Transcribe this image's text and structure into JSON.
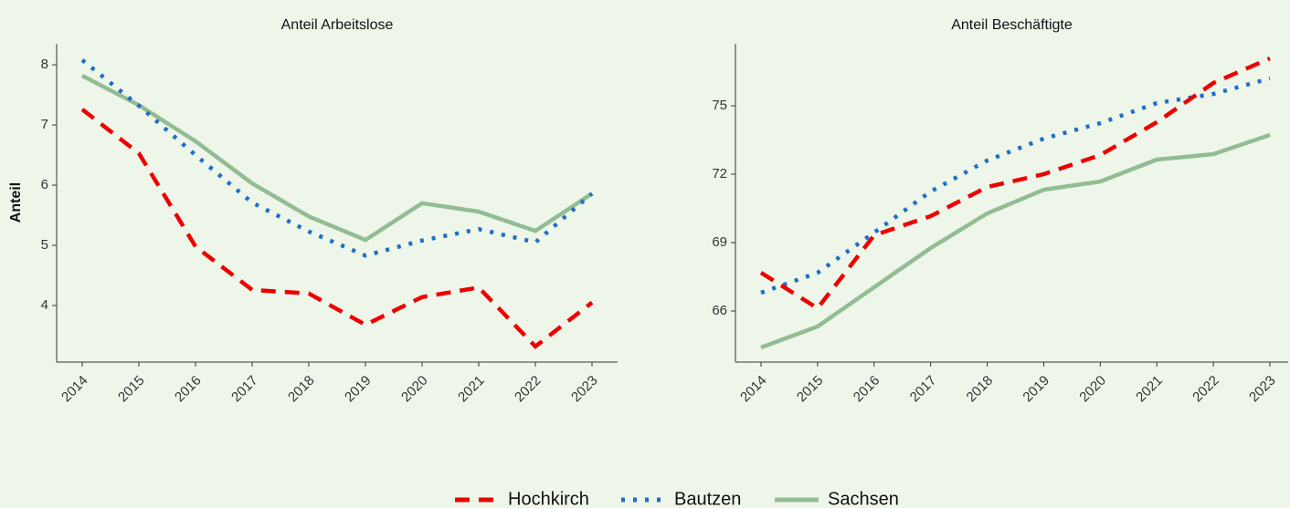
{
  "chart_data": [
    {
      "type": "line",
      "title": "Anteil Arbeitslose",
      "ylabel": "Anteil",
      "categories": [
        "2014",
        "2015",
        "2016",
        "2017",
        "2018",
        "2019",
        "2020",
        "2021",
        "2022",
        "2023"
      ],
      "ylim": [
        3.06,
        8.35
      ],
      "yticks": [
        4,
        5,
        6,
        7,
        8
      ],
      "series": [
        {
          "name": "Hochkirch",
          "color": "#ee0000",
          "linestyle": "dashed",
          "values": [
            7.26,
            6.53,
            4.98,
            4.26,
            4.2,
            3.68,
            4.14,
            4.3,
            3.32,
            4.05
          ]
        },
        {
          "name": "Bautzen",
          "color": "#1f6fc5",
          "linestyle": "dotted",
          "values": [
            8.08,
            7.32,
            6.5,
            5.71,
            5.23,
            4.83,
            5.08,
            5.27,
            5.05,
            5.86
          ]
        },
        {
          "name": "Sachsen",
          "color": "#93bc93",
          "linestyle": "solid",
          "values": [
            7.82,
            7.33,
            6.73,
            6.03,
            5.48,
            5.09,
            5.7,
            5.56,
            5.24,
            5.86
          ]
        }
      ]
    },
    {
      "type": "line",
      "title": "Anteil Beschäftigte",
      "categories": [
        "2014",
        "2015",
        "2016",
        "2017",
        "2018",
        "2019",
        "2020",
        "2021",
        "2022",
        "2023"
      ],
      "ylim": [
        63.76,
        77.72
      ],
      "yticks": [
        66,
        69,
        72,
        75
      ],
      "series": [
        {
          "name": "Hochkirch",
          "color": "#ee0000",
          "linestyle": "dashed",
          "values": [
            67.68,
            66.12,
            69.32,
            70.16,
            71.44,
            72.0,
            72.84,
            74.28,
            76.0,
            77.08
          ]
        },
        {
          "name": "Bautzen",
          "color": "#1f6fc5",
          "linestyle": "dotted",
          "values": [
            66.8,
            67.68,
            69.44,
            71.24,
            72.6,
            73.56,
            74.24,
            75.12,
            75.52,
            76.2
          ]
        },
        {
          "name": "Sachsen",
          "color": "#93bc93",
          "linestyle": "solid",
          "values": [
            64.4,
            65.32,
            67.04,
            68.76,
            70.28,
            71.32,
            71.68,
            72.64,
            72.88,
            73.72
          ]
        }
      ]
    }
  ]
}
